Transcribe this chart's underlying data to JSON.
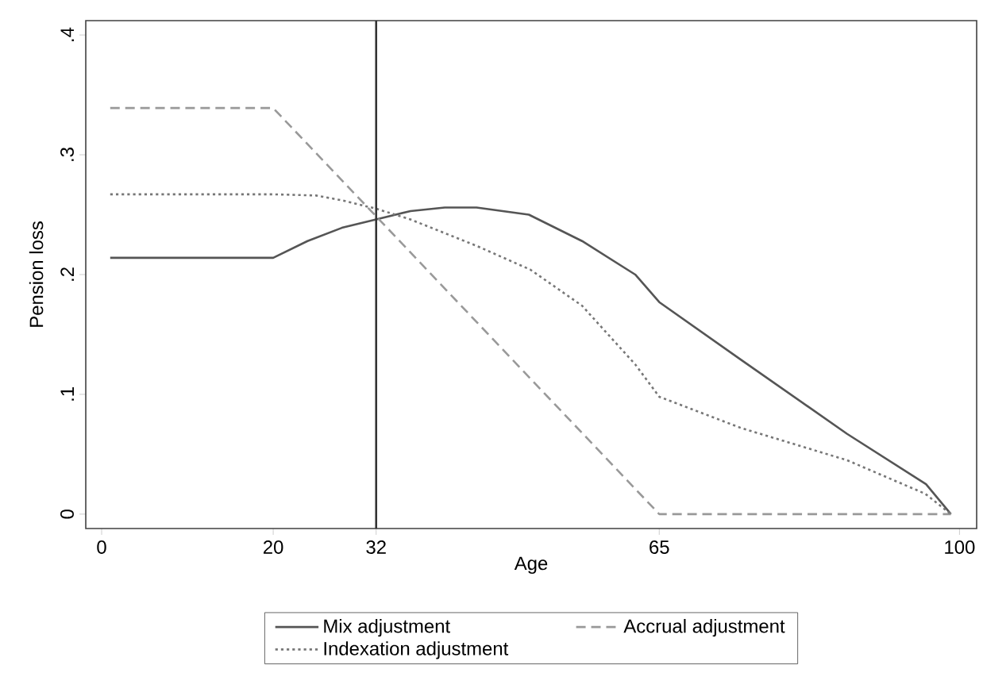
{
  "chart_data": {
    "type": "line",
    "xlabel": "Age",
    "ylabel": "Pension loss",
    "xlim": [
      -1.85,
      102
    ],
    "ylim": [
      -0.012,
      0.412
    ],
    "xticks": [
      0,
      20,
      32,
      65,
      100
    ],
    "yticks": [
      0,
      {
        "value": 0.1,
        "label": ".1"
      },
      {
        "value": 0.2,
        "label": ".2"
      },
      {
        "value": 0.3,
        "label": ".3"
      },
      {
        "value": 0.4,
        "label": ".4"
      }
    ],
    "grid": false,
    "legend": "bottom",
    "marker": "none",
    "ref_lines": [
      {
        "axis": "x",
        "value": 32,
        "color": "#333333",
        "line_style": "solid"
      }
    ],
    "series": [
      {
        "name": "Mix adjustment",
        "color": "#555555",
        "line_style": "solid",
        "x": [
          1,
          20,
          24,
          28,
          32,
          36,
          40,
          43.7,
          49.8,
          56,
          62.2,
          65,
          74.5,
          86.9,
          96.1,
          99
        ],
        "values": [
          0.214,
          0.214,
          0.228,
          0.239,
          0.246,
          0.253,
          0.256,
          0.256,
          0.25,
          0.228,
          0.2,
          0.177,
          0.129,
          0.067,
          0.025,
          0
        ]
      },
      {
        "name": "Accrual adjustment",
        "color": "#999999",
        "line_style": "dashed",
        "x": [
          1,
          20,
          65,
          99
        ],
        "values": [
          0.339,
          0.339,
          0,
          0
        ]
      },
      {
        "name": "Indexation adjustment",
        "color": "#777777",
        "line_style": "dotted",
        "x": [
          1,
          20,
          25,
          28,
          32,
          36,
          43.7,
          50,
          56,
          62.2,
          65,
          74.5,
          86.9,
          96,
          99
        ],
        "values": [
          0.267,
          0.267,
          0.266,
          0.262,
          0.255,
          0.246,
          0.224,
          0.204,
          0.174,
          0.125,
          0.098,
          0.072,
          0.045,
          0.017,
          0
        ]
      }
    ]
  }
}
